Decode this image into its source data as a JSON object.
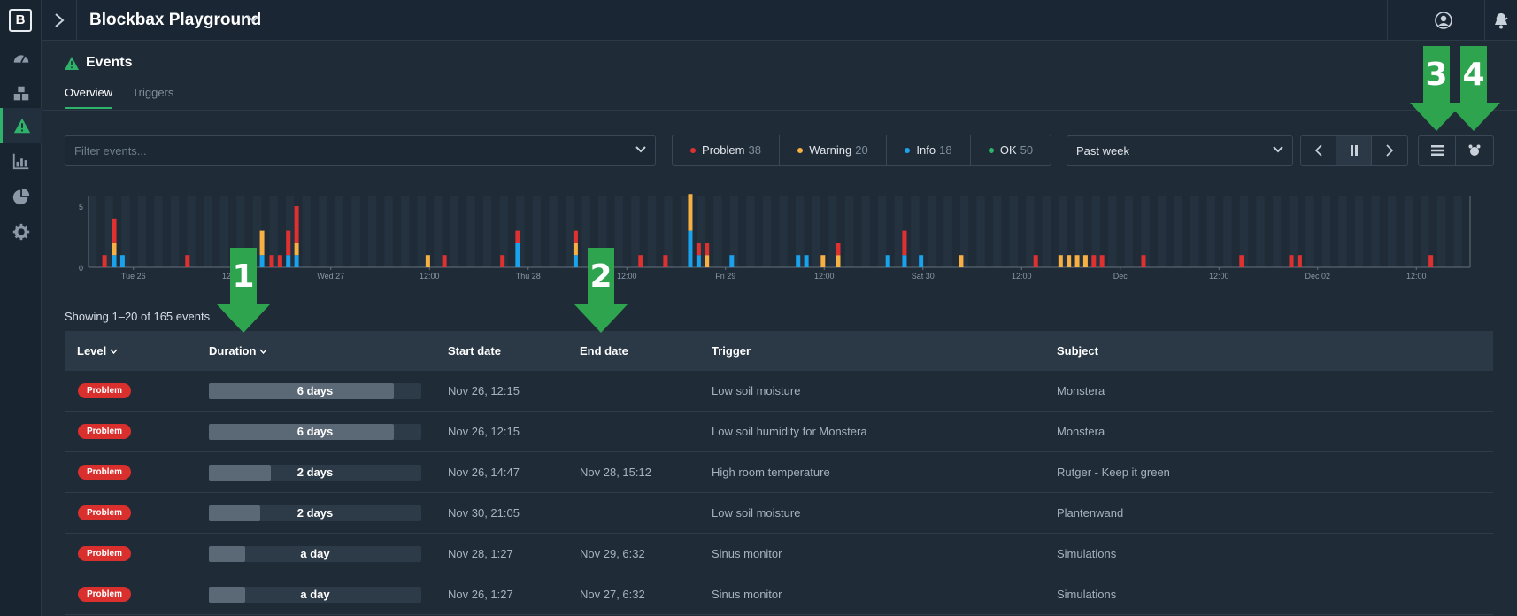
{
  "app": {
    "logo": "B",
    "title": "Blockbax Playground"
  },
  "sidebar": {
    "items": [
      {
        "icon": "dashboard-gauge-icon"
      },
      {
        "icon": "cubes-icon"
      },
      {
        "icon": "warning-triangle-icon",
        "active": true
      },
      {
        "icon": "bar-chart-icon"
      },
      {
        "icon": "pie-chart-icon"
      },
      {
        "icon": "gear-icon"
      }
    ]
  },
  "topbar": {
    "icons": [
      "chevron-right-icon",
      "user-icon",
      "chevron-down-icon",
      "bell-icon"
    ]
  },
  "page": {
    "title": "Events",
    "tabs": [
      {
        "label": "Overview",
        "active": true
      },
      {
        "label": "Triggers"
      }
    ]
  },
  "filters": {
    "placeholder": "Filter events...",
    "levels": [
      {
        "name": "Problem",
        "count": "38",
        "color": "#e03131"
      },
      {
        "name": "Warning",
        "count": "20",
        "color": "#f7b043"
      },
      {
        "name": "Info",
        "count": "18",
        "color": "#1aa3ec"
      },
      {
        "name": "OK",
        "count": "50",
        "color": "#2fb36a"
      }
    ],
    "range": "Past week"
  },
  "chart_data": {
    "type": "bar",
    "stacked": true,
    "y_ticks": [
      "0",
      "5"
    ],
    "ylim": [
      0,
      5.8
    ],
    "x_ticks": [
      "Tue 26",
      "12:00",
      "Wed 27",
      "12:00",
      "Thu 28",
      "12:00",
      "Fri 29",
      "12:00",
      "Sat 30",
      "12:00",
      "Dec",
      "12:00",
      "Dec 02",
      "12:00"
    ],
    "series_colors": {
      "problem": "#e03131",
      "warning": "#f7b043",
      "info": "#1aa3ec"
    },
    "bars": [
      {
        "t": 0.01,
        "problem": 1
      },
      {
        "t": 0.017,
        "info": 1,
        "warning": 1,
        "problem": 2
      },
      {
        "t": 0.023,
        "info": 1
      },
      {
        "t": 0.07,
        "problem": 1
      },
      {
        "t": 0.112,
        "problem": 1
      },
      {
        "t": 0.124,
        "info": 1,
        "warning": 2
      },
      {
        "t": 0.131,
        "problem": 1
      },
      {
        "t": 0.137,
        "problem": 1
      },
      {
        "t": 0.143,
        "info": 1,
        "problem": 2
      },
      {
        "t": 0.149,
        "info": 1,
        "warning": 1,
        "problem": 3
      },
      {
        "t": 0.244,
        "warning": 1
      },
      {
        "t": 0.256,
        "problem": 1
      },
      {
        "t": 0.298,
        "problem": 1
      },
      {
        "t": 0.309,
        "info": 2,
        "problem": 1
      },
      {
        "t": 0.351,
        "info": 1,
        "warning": 1,
        "problem": 1
      },
      {
        "t": 0.398,
        "problem": 1
      },
      {
        "t": 0.416,
        "problem": 1
      },
      {
        "t": 0.434,
        "info": 3,
        "warning": 3
      },
      {
        "t": 0.44,
        "info": 1,
        "problem": 1
      },
      {
        "t": 0.446,
        "warning": 1,
        "problem": 1
      },
      {
        "t": 0.464,
        "info": 1
      },
      {
        "t": 0.512,
        "info": 1
      },
      {
        "t": 0.518,
        "info": 1
      },
      {
        "t": 0.53,
        "warning": 1
      },
      {
        "t": 0.541,
        "warning": 1,
        "problem": 1
      },
      {
        "t": 0.577,
        "info": 1
      },
      {
        "t": 0.589,
        "info": 1,
        "problem": 2
      },
      {
        "t": 0.601,
        "info": 1
      },
      {
        "t": 0.63,
        "warning": 1
      },
      {
        "t": 0.684,
        "problem": 1
      },
      {
        "t": 0.702,
        "warning": 1
      },
      {
        "t": 0.708,
        "warning": 1
      },
      {
        "t": 0.714,
        "warning": 1
      },
      {
        "t": 0.72,
        "warning": 1
      },
      {
        "t": 0.726,
        "problem": 1
      },
      {
        "t": 0.732,
        "problem": 1
      },
      {
        "t": 0.762,
        "problem": 1
      },
      {
        "t": 0.833,
        "problem": 1
      },
      {
        "t": 0.869,
        "problem": 1
      },
      {
        "t": 0.875,
        "problem": 1
      },
      {
        "t": 0.97,
        "problem": 1
      }
    ]
  },
  "table": {
    "summary": "Showing 1–20 of 165 events",
    "columns": [
      {
        "label": "Level",
        "sortable": true
      },
      {
        "label": "Duration",
        "sortable": true
      },
      {
        "label": "Start date"
      },
      {
        "label": "End date"
      },
      {
        "label": "Trigger"
      },
      {
        "label": "Subject"
      }
    ],
    "rows": [
      {
        "level": "Problem",
        "duration": "6 days",
        "duration_fraction": 0.87,
        "start": "Nov 26, 12:15",
        "end": "",
        "trigger": "Low soil moisture",
        "subject": "Monstera"
      },
      {
        "level": "Problem",
        "duration": "6 days",
        "duration_fraction": 0.87,
        "start": "Nov 26, 12:15",
        "end": "",
        "trigger": "Low soil humidity for Monstera",
        "subject": "Monstera"
      },
      {
        "level": "Problem",
        "duration": "2 days",
        "duration_fraction": 0.29,
        "start": "Nov 26, 14:47",
        "end": "Nov 28, 15:12",
        "trigger": "High room temperature",
        "subject": "Rutger - Keep it green"
      },
      {
        "level": "Problem",
        "duration": "2 days",
        "duration_fraction": 0.24,
        "start": "Nov 30, 21:05",
        "end": "",
        "trigger": "Low soil moisture",
        "subject": "Plantenwand"
      },
      {
        "level": "Problem",
        "duration": "a day",
        "duration_fraction": 0.17,
        "start": "Nov 28, 1:27",
        "end": "Nov 29, 6:32",
        "trigger": "Sinus monitor",
        "subject": "Simulations"
      },
      {
        "level": "Problem",
        "duration": "a day",
        "duration_fraction": 0.17,
        "start": "Nov 26, 1:27",
        "end": "Nov 27, 6:32",
        "trigger": "Sinus monitor",
        "subject": "Simulations"
      }
    ]
  },
  "annotations": [
    "1",
    "2",
    "3",
    "4"
  ]
}
